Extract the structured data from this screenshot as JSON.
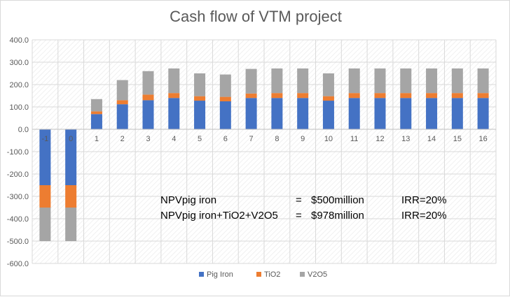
{
  "chart_data": {
    "type": "bar",
    "stacked": true,
    "title": "Cash flow of VTM project",
    "xlabel": "",
    "ylabel": "",
    "ylim": [
      -600,
      400
    ],
    "yticks": [
      "400.0",
      "300.0",
      "200.0",
      "100.0",
      "0.0",
      "-100.0",
      "-200.0",
      "-300.0",
      "-400.0",
      "-500.0",
      "-600.0"
    ],
    "categories": [
      "-1",
      "0",
      "1",
      "2",
      "3",
      "4",
      "5",
      "6",
      "7",
      "8",
      "9",
      "10",
      "11",
      "12",
      "13",
      "14",
      "15",
      "16"
    ],
    "series": [
      {
        "name": "Pig Iron",
        "color": "#4472c4",
        "values": [
          -250,
          -250,
          68,
          112,
          130,
          140,
          128,
          125,
          140,
          140,
          140,
          128,
          140,
          140,
          140,
          140,
          140,
          140
        ]
      },
      {
        "name": "TiO2",
        "color": "#ed7d31",
        "values": [
          -100,
          -100,
          12,
          18,
          25,
          22,
          20,
          20,
          20,
          22,
          22,
          20,
          22,
          22,
          22,
          22,
          22,
          22
        ]
      },
      {
        "name": "V2O5",
        "color": "#a5a5a5",
        "values": [
          -150,
          -150,
          55,
          90,
          105,
          110,
          102,
          100,
          110,
          110,
          110,
          102,
          110,
          110,
          110,
          110,
          110,
          110
        ]
      }
    ],
    "grid": true,
    "legend_position": "bottom",
    "annotations": [
      {
        "col1": "NPVpig iron",
        "eq": "=",
        "npv": "$500million",
        "irr": "IRR=20%"
      },
      {
        "col1": "NPVpig iron+TiO2+V2O5",
        "eq": "=",
        "npv": "$978million",
        "irr": "IRR=20%"
      }
    ]
  }
}
